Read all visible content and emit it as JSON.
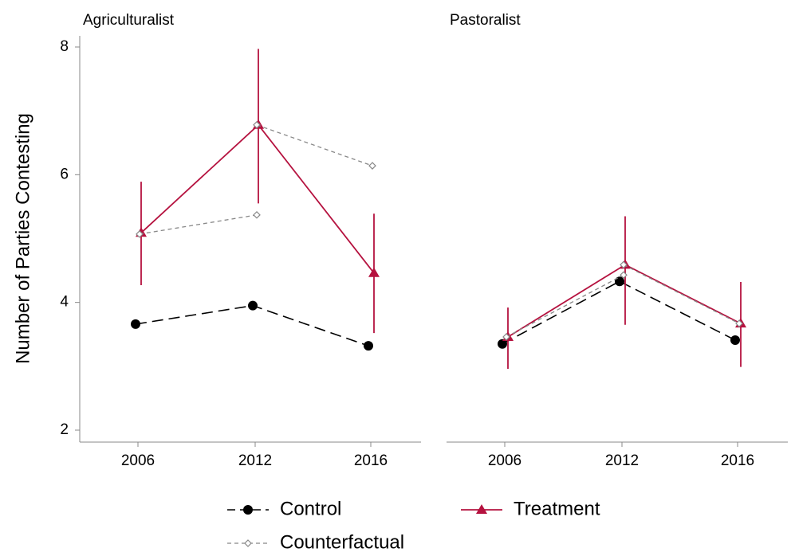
{
  "chart_data": [
    {
      "type": "line",
      "title": "Agriculturalist",
      "y_label": "Number of Parties Contesting",
      "categories": [
        "2006",
        "2012",
        "2016"
      ],
      "ylim": [
        2,
        8
      ],
      "yticks": [
        2,
        4,
        6,
        8
      ],
      "series": [
        {
          "name": "Control",
          "color": "#000000",
          "values": [
            3.66,
            3.95,
            3.32
          ]
        },
        {
          "name": "Treatment",
          "color": "#b5123f",
          "values": [
            5.09,
            6.78,
            4.46
          ],
          "lower": [
            4.27,
            5.55,
            3.52
          ],
          "upper": [
            5.89,
            7.97,
            5.39
          ]
        },
        {
          "name": "Counterfactual",
          "color": "#888888",
          "values": [
            5.07,
            5.37,
            null
          ]
        },
        {
          "color": "#888888",
          "values": [
            null,
            6.78,
            6.14
          ]
        }
      ]
    },
    {
      "type": "line",
      "title": "Pastoralist",
      "categories": [
        "2006",
        "2012",
        "2016"
      ],
      "ylim": [
        2,
        8
      ],
      "series": [
        {
          "color": "#000000",
          "values": [
            3.35,
            4.33,
            3.41
          ]
        },
        {
          "color": "#b5123f",
          "values": [
            3.46,
            4.59,
            3.67
          ],
          "lower": [
            2.96,
            3.65,
            2.99
          ],
          "upper": [
            3.92,
            5.35,
            4.32
          ]
        },
        {
          "color": "#888888",
          "values": [
            3.46,
            4.43,
            null
          ]
        },
        {
          "color": "#888888",
          "values": [
            null,
            4.59,
            3.67
          ]
        }
      ]
    }
  ]
}
